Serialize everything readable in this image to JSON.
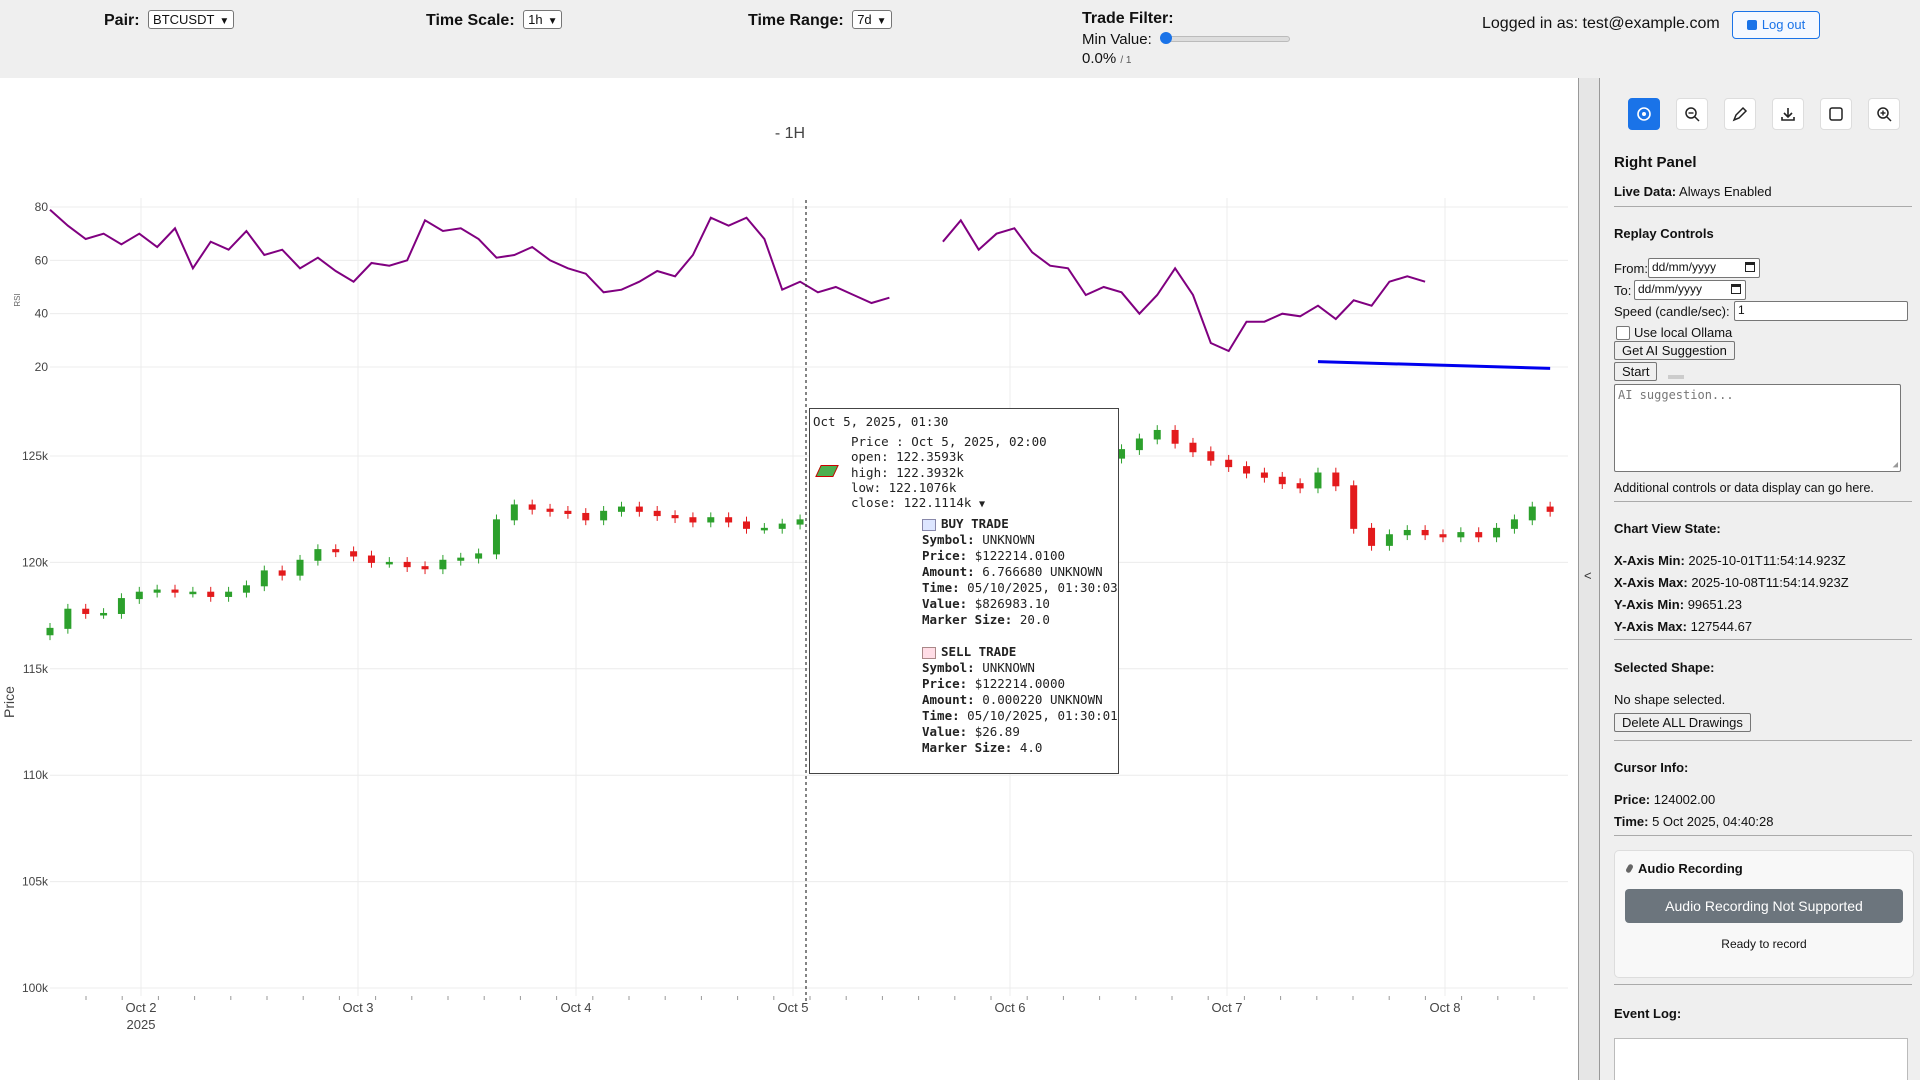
{
  "topbar": {
    "pair_label": "Pair:",
    "pair_value": "BTCUSDT",
    "scale_label": "Time Scale:",
    "scale_value": "1h",
    "range_label": "Time Range:",
    "range_value": "7d",
    "filter_label": "Trade Filter:",
    "min_value_label": "Min Value:",
    "min_value": "0.0%",
    "min_value_of": "/ 1",
    "logged_in": "Logged in as: test@example.com",
    "logout_label": "Log out",
    "slider_fraction": 0
  },
  "chart": {
    "title": "- 1H",
    "rsi_label": "RSI",
    "price_label": "Price",
    "rsi_ticks": [
      "80",
      "60",
      "40",
      "20"
    ],
    "price_ticks": [
      "125k",
      "120k",
      "115k",
      "110k",
      "105k",
      "100k"
    ],
    "x_ticks": [
      "Oct 2",
      "Oct 3",
      "Oct 4",
      "Oct 5",
      "Oct 6",
      "Oct 7",
      "Oct 8"
    ],
    "x_year": "2025"
  },
  "chart_data": {
    "type": "candlestick",
    "x_range": [
      "2025-10-01T11:54:14.923Z",
      "2025-10-08T11:54:14.923Z"
    ],
    "price_ylim": [
      99651.23,
      127544.67
    ],
    "rsi_ylim": [
      10,
      85
    ],
    "price_close_approx": [
      [
        0,
        116.9
      ],
      [
        2,
        117.8
      ],
      [
        4,
        117.6
      ],
      [
        6,
        117.6
      ],
      [
        8,
        118.3
      ],
      [
        10,
        118.6
      ],
      [
        12,
        118.7
      ],
      [
        14,
        118.6
      ],
      [
        16,
        118.6
      ],
      [
        18,
        118.4
      ],
      [
        20,
        118.6
      ],
      [
        22,
        118.9
      ],
      [
        24,
        119.6
      ],
      [
        26,
        119.4
      ],
      [
        28,
        120.1
      ],
      [
        30,
        120.6
      ],
      [
        32,
        120.5
      ],
      [
        34,
        120.3
      ],
      [
        36,
        120.0
      ],
      [
        38,
        120.0
      ],
      [
        40,
        119.8
      ],
      [
        42,
        119.7
      ],
      [
        44,
        120.1
      ],
      [
        46,
        120.2
      ],
      [
        48,
        120.4
      ],
      [
        50,
        122.0
      ],
      [
        52,
        122.7
      ],
      [
        54,
        122.5
      ],
      [
        56,
        122.4
      ],
      [
        58,
        122.3
      ],
      [
        60,
        122.0
      ],
      [
        62,
        122.4
      ],
      [
        64,
        122.6
      ],
      [
        66,
        122.4
      ],
      [
        68,
        122.2
      ],
      [
        70,
        122.1
      ],
      [
        72,
        121.9
      ],
      [
        74,
        122.1
      ],
      [
        76,
        121.9
      ],
      [
        78,
        121.6
      ],
      [
        80,
        121.6
      ],
      [
        82,
        121.8
      ],
      [
        84,
        122.0
      ],
      [
        86,
        122.1
      ],
      [
        88,
        122.2
      ],
      [
        90,
        121.8
      ],
      [
        92,
        121.7
      ],
      [
        94,
        121.8
      ],
      [
        96,
        122.0
      ],
      [
        98,
        122.2
      ],
      [
        100,
        122.5
      ],
      [
        102,
        122.7
      ],
      [
        104,
        122.9
      ],
      [
        106,
        123.3
      ],
      [
        108,
        123.5
      ],
      [
        110,
        123.7
      ],
      [
        112,
        123.9
      ],
      [
        114,
        124.2
      ],
      [
        116,
        124.5
      ],
      [
        118,
        124.9
      ],
      [
        120,
        125.3
      ],
      [
        122,
        125.8
      ],
      [
        124,
        126.2
      ],
      [
        126,
        125.6
      ],
      [
        128,
        125.2
      ],
      [
        130,
        124.8
      ],
      [
        132,
        124.5
      ],
      [
        134,
        124.2
      ],
      [
        136,
        124.0
      ],
      [
        138,
        123.7
      ],
      [
        140,
        123.5
      ],
      [
        142,
        124.2
      ],
      [
        144,
        123.6
      ],
      [
        146,
        121.6
      ],
      [
        148,
        120.8
      ],
      [
        150,
        121.3
      ],
      [
        152,
        121.5
      ],
      [
        154,
        121.3
      ],
      [
        156,
        121.2
      ],
      [
        158,
        121.4
      ],
      [
        160,
        121.2
      ],
      [
        162,
        121.6
      ],
      [
        164,
        122.0
      ],
      [
        166,
        122.6
      ],
      [
        168,
        122.4
      ]
    ],
    "rsi_approx": [
      [
        0,
        79
      ],
      [
        2,
        73
      ],
      [
        4,
        68
      ],
      [
        6,
        70
      ],
      [
        8,
        66
      ],
      [
        10,
        70
      ],
      [
        12,
        65
      ],
      [
        14,
        72
      ],
      [
        16,
        57
      ],
      [
        18,
        67
      ],
      [
        20,
        64
      ],
      [
        22,
        71
      ],
      [
        24,
        62
      ],
      [
        26,
        64
      ],
      [
        28,
        57
      ],
      [
        30,
        61
      ],
      [
        32,
        56
      ],
      [
        34,
        52
      ],
      [
        36,
        59
      ],
      [
        38,
        58
      ],
      [
        40,
        60
      ],
      [
        42,
        75
      ],
      [
        44,
        71
      ],
      [
        46,
        72
      ],
      [
        48,
        68
      ],
      [
        50,
        61
      ],
      [
        52,
        62
      ],
      [
        54,
        65
      ],
      [
        56,
        60
      ],
      [
        58,
        57
      ],
      [
        60,
        55
      ],
      [
        62,
        48
      ],
      [
        64,
        49
      ],
      [
        66,
        52
      ],
      [
        68,
        56
      ],
      [
        70,
        54
      ],
      [
        72,
        62
      ],
      [
        74,
        76
      ],
      [
        76,
        73
      ],
      [
        78,
        76
      ],
      [
        80,
        68
      ],
      [
        82,
        49
      ],
      [
        84,
        52
      ],
      [
        86,
        48
      ],
      [
        88,
        50
      ],
      [
        90,
        47
      ],
      [
        92,
        44
      ],
      [
        94,
        46
      ],
      [
        100,
        67
      ],
      [
        102,
        75
      ],
      [
        104,
        64
      ],
      [
        106,
        70
      ],
      [
        108,
        72
      ],
      [
        110,
        63
      ],
      [
        112,
        58
      ],
      [
        114,
        57
      ],
      [
        116,
        47
      ],
      [
        118,
        50
      ],
      [
        120,
        48
      ],
      [
        122,
        40
      ],
      [
        124,
        47
      ],
      [
        126,
        57
      ],
      [
        128,
        47
      ],
      [
        130,
        29
      ],
      [
        132,
        26
      ],
      [
        134,
        37
      ],
      [
        136,
        37
      ],
      [
        138,
        40
      ],
      [
        140,
        39
      ],
      [
        142,
        43
      ],
      [
        144,
        38
      ],
      [
        146,
        45
      ],
      [
        148,
        43
      ],
      [
        150,
        52
      ],
      [
        152,
        54
      ],
      [
        154,
        52
      ]
    ],
    "trend_line": {
      "from": [
        142,
        22
      ],
      "to": [
        168,
        19.5
      ]
    }
  },
  "tooltip": {
    "header": "Oct 5, 2025, 01:30",
    "price_line": "Price : Oct 5, 2025, 02:00",
    "open": "open: 122.3593k",
    "high": "high: 122.3932k",
    "low": "low: 122.1076k",
    "close": "close: 122.1114k",
    "buy_title": "BUY TRADE",
    "buy_symbol_k": "Symbol:",
    "buy_symbol_v": "UNKNOWN",
    "buy_price_k": "Price:",
    "buy_price_v": "$122214.0100",
    "buy_amount_k": "Amount:",
    "buy_amount_v": "6.766680 UNKNOWN",
    "buy_time_k": "Time:",
    "buy_time_v": "05/10/2025, 01:30:03",
    "buy_value_k": "Value:",
    "buy_value_v": "$826983.10",
    "buy_marker_k": "Marker Size:",
    "buy_marker_v": "20.0",
    "sell_title": "SELL TRADE",
    "sell_symbol_k": "Symbol:",
    "sell_symbol_v": "UNKNOWN",
    "sell_price_k": "Price:",
    "sell_price_v": "$122214.0000",
    "sell_amount_k": "Amount:",
    "sell_amount_v": "0.000220 UNKNOWN",
    "sell_time_k": "Time:",
    "sell_time_v": "05/10/2025, 01:30:01",
    "sell_value_k": "Value:",
    "sell_value_v": "$26.89",
    "sell_marker_k": "Marker Size:",
    "sell_marker_v": "4.0"
  },
  "splitter": {
    "arrow": "<"
  },
  "panel": {
    "title": "Right Panel",
    "live_k": "Live Data:",
    "live_v": "Always Enabled",
    "replay_title": "Replay Controls",
    "from_label": "From:",
    "to_label": "To:",
    "date_placeholder": "dd/mm/yyyy",
    "speed_label": "Speed (candle/sec):",
    "speed_value": "1",
    "ollama_label": "Use local Ollama",
    "ai_button": "Get AI Suggestion",
    "start_button": "Start",
    "ai_placeholder": "AI suggestion...",
    "additional": "Additional controls or data display can go here.",
    "view_title": "Chart View State:",
    "xmin_k": "X-Axis Min:",
    "xmin_v": "2025-10-01T11:54:14.923Z",
    "xmax_k": "X-Axis Max:",
    "xmax_v": "2025-10-08T11:54:14.923Z",
    "ymin_k": "Y-Axis Min:",
    "ymin_v": "99651.23",
    "ymax_k": "Y-Axis Max:",
    "ymax_v": "127544.67",
    "shape_title": "Selected Shape:",
    "shape_none": "No shape selected.",
    "delete_button": "Delete ALL Drawings",
    "cursor_title": "Cursor Info:",
    "cursor_price_k": "Price:",
    "cursor_price_v": "124002.00",
    "cursor_time_k": "Time:",
    "cursor_time_v": "5 Oct 2025, 04:40:28",
    "audio_title": "Audio Recording",
    "audio_button": "Audio Recording Not Supported",
    "audio_status": "Ready to record",
    "event_title": "Event Log:"
  },
  "colors": {
    "up": "#2ca02c",
    "down": "#e31a1c",
    "rsi": "#800080",
    "trend": "#0000ee",
    "accent": "#1a73e8"
  }
}
